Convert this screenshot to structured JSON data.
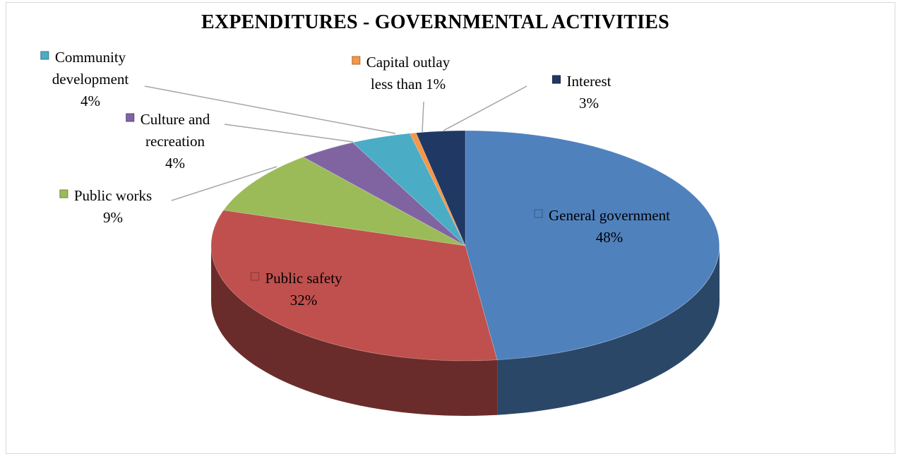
{
  "chart_data": {
    "type": "pie",
    "title": "EXPENDITURES - GOVERNMENTAL ACTIVITIES",
    "slices": [
      {
        "name": "General government",
        "value": 48,
        "label_lines": [
          "General government"
        ],
        "pct_label": "48%",
        "color": "#4f81bd"
      },
      {
        "name": "Public safety",
        "value": 32,
        "label_lines": [
          "Public safety"
        ],
        "pct_label": "32%",
        "color": "#c0504d"
      },
      {
        "name": "Public works",
        "value": 9,
        "label_lines": [
          "Public works"
        ],
        "pct_label": "9%",
        "color": "#9bbb59"
      },
      {
        "name": "Culture and recreation",
        "value": 3.7,
        "label_lines": [
          "Culture and",
          "recreation"
        ],
        "pct_label": "4%",
        "color": "#8064a2"
      },
      {
        "name": "Community development",
        "value": 3.8,
        "label_lines": [
          "Community",
          "development"
        ],
        "pct_label": "4%",
        "color": "#4bacc6"
      },
      {
        "name": "Capital outlay",
        "value": 0.4,
        "label_lines": [
          "Capital outlay",
          "less than 1%"
        ],
        "pct_label": "",
        "color": "#f79646"
      },
      {
        "name": "Interest",
        "value": 3.1,
        "label_lines": [
          "Interest"
        ],
        "pct_label": "3%",
        "color": "#1f3864"
      }
    ],
    "style": "3d-pie",
    "legend": "none"
  }
}
